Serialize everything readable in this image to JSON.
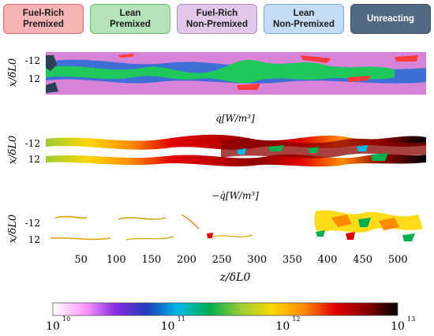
{
  "legend": {
    "items": [
      {
        "label": "Fuel-Rich\nPremixed",
        "fill": "#f7b3b3",
        "border": "#e06b6b",
        "text": "#1a1a1a"
      },
      {
        "label": "Lean\nPremixed",
        "fill": "#b5e3b9",
        "border": "#6cbf72",
        "text": "#1a1a1a"
      },
      {
        "label": "Fuel-Rich\nNon-Premixed",
        "fill": "#e1c8ea",
        "border": "#b48ac2",
        "text": "#1a1a1a"
      },
      {
        "label": "Lean\nNon-Premixed",
        "fill": "#c4dcf4",
        "border": "#7ea9d6",
        "text": "#1a1a1a"
      },
      {
        "label": "Unreacting",
        "fill": "#4f6a82",
        "border": "#3b5267",
        "text": "#ffffff"
      }
    ]
  },
  "chart_data": [
    {
      "type": "heatmap",
      "panel": "flame regime map",
      "title": "",
      "ylabel": "x/δL0",
      "yticks": [
        "-12",
        "12"
      ],
      "categories": [
        "Fuel-Rich Premixed",
        "Lean Premixed",
        "Fuel-Rich Non-Premixed",
        "Lean Non-Premixed",
        "Unreacting"
      ]
    },
    {
      "type": "heatmap",
      "panel": "heat release rate",
      "title": "q̇[W/m³]",
      "ylabel": "x/δL0",
      "yticks": [
        "-12",
        "12"
      ]
    },
    {
      "type": "heatmap",
      "panel": "negative heat release rate",
      "title": "−q̇[W/m³]",
      "ylabel": "x/δL0",
      "yticks": [
        "-12",
        "12"
      ],
      "xlabel": "z/δL0",
      "xticks": [
        50,
        100,
        150,
        200,
        250,
        300,
        350,
        400,
        450,
        500
      ],
      "xlim": [
        0,
        540
      ]
    }
  ],
  "colorbar": {
    "scale": "log",
    "range_exp": [
      10,
      13
    ],
    "tick_base": "10",
    "tick_exponents": [
      "10",
      "11",
      "12",
      "13"
    ],
    "colors": [
      "#ffffff",
      "#ff9bff",
      "#8a2be2",
      "#1f3fbf",
      "#00b8e6",
      "#00b050",
      "#9acd32",
      "#ffd700",
      "#ff8c00",
      "#e00000",
      "#8b0000",
      "#000000"
    ]
  }
}
